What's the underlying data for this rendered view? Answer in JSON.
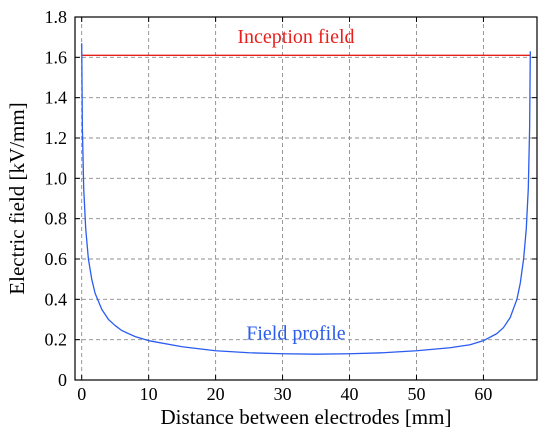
{
  "chart_data": {
    "type": "line",
    "xlabel": "Distance between electrodes [mm]",
    "ylabel": "Electric field [kV/mm]",
    "xlim": [
      -1,
      68
    ],
    "ylim": [
      0,
      1.8
    ],
    "x_ticks": [
      0,
      10,
      20,
      30,
      40,
      50,
      60
    ],
    "x_tick_labels": [
      "0",
      "10",
      "20",
      "30",
      "40",
      "50",
      "60"
    ],
    "y_ticks": [
      0,
      0.2,
      0.4,
      0.6,
      0.8,
      1.0,
      1.2,
      1.4,
      1.6,
      1.8
    ],
    "y_tick_labels": [
      "0",
      "0.2",
      "0.4",
      "0.6",
      "0.8",
      "1.0",
      "1.2",
      "1.4",
      "1.6",
      "1.8"
    ],
    "grid": true,
    "series": [
      {
        "name": "Inception field",
        "color": "#e8201c",
        "x": [
          0,
          67
        ],
        "values": [
          1.61,
          1.61
        ]
      },
      {
        "name": "Field profile",
        "color": "#2a5cf0",
        "x": [
          0,
          0.1,
          0.3,
          0.6,
          1,
          1.5,
          2,
          3,
          4,
          5,
          6,
          8,
          10,
          15,
          20,
          25,
          30,
          35,
          40,
          45,
          50,
          55,
          58,
          60,
          62,
          63,
          64,
          65,
          65.5,
          66,
          66.4,
          66.7,
          66.9,
          67
        ],
        "values": [
          1.67,
          1.25,
          0.95,
          0.75,
          0.6,
          0.5,
          0.43,
          0.35,
          0.3,
          0.27,
          0.245,
          0.215,
          0.195,
          0.165,
          0.145,
          0.135,
          0.13,
          0.128,
          0.13,
          0.135,
          0.145,
          0.16,
          0.175,
          0.195,
          0.23,
          0.26,
          0.31,
          0.4,
          0.48,
          0.6,
          0.75,
          0.95,
          1.25,
          1.63
        ]
      }
    ],
    "annotations": [
      {
        "text": "Inception field",
        "x": 32,
        "y": 1.67,
        "color": "#e8201c"
      },
      {
        "text": "Field profile",
        "x": 32,
        "y": 0.2,
        "color": "#2a5cf0"
      }
    ]
  }
}
